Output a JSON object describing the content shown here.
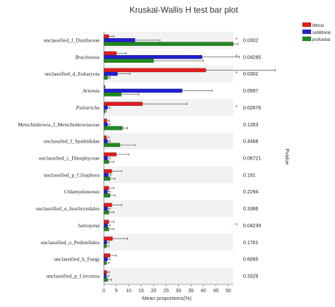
{
  "chart_data": {
    "type": "bar",
    "title": "Kruskal-Wallis H test bar plot",
    "xlabel": "Mean proportions(%)",
    "right_axis_label": "Pvalue",
    "xlim": [
      0,
      52
    ],
    "xticks": [
      0,
      5,
      10,
      15,
      20,
      25,
      30,
      35,
      40,
      45,
      50
    ],
    "legend_position": "top-right",
    "series": [
      {
        "name": "littoral",
        "color": "#e31a1c",
        "values": [
          2,
          5,
          41,
          0.3,
          15.5,
          1.2,
          1,
          5,
          3.2,
          2,
          3.2,
          2,
          3.5,
          2.5,
          1.2
        ],
        "errors": [
          2,
          4,
          28,
          0.2,
          18,
          1,
          1,
          5,
          4,
          2,
          4,
          2,
          6,
          2.5,
          1
        ]
      },
      {
        "name": "sublittoral",
        "color": "#1f1fd0",
        "values": [
          12.5,
          39.5,
          5.5,
          31.5,
          1.5,
          1.5,
          1.5,
          1.5,
          1.8,
          1.5,
          1.5,
          1.5,
          1.2,
          1.5,
          1
        ],
        "errors": [
          10,
          15,
          5,
          12,
          1,
          1,
          1,
          1,
          1,
          1,
          1,
          1,
          1,
          1,
          1
        ]
      },
      {
        "name": "profundal",
        "color": "#1e8a1e",
        "values": [
          52,
          20,
          1.5,
          7,
          0.5,
          7.5,
          6.5,
          2,
          2.5,
          2.5,
          2,
          2,
          1,
          1,
          1.5
        ],
        "errors": [
          2,
          20,
          1,
          7,
          0.5,
          2,
          6,
          2,
          2,
          2,
          2,
          2,
          1,
          1,
          1.5
        ]
      }
    ],
    "categories": [
      {
        "label": "unclassified_f_Dunllaceae",
        "italic": false,
        "pvalue": "0.0302",
        "sig": "*"
      },
      {
        "label": "Brachionus",
        "italic": true,
        "pvalue": "0.04285",
        "sig": "*"
      },
      {
        "label": "unclassified_d_Eukaryota",
        "italic": false,
        "pvalue": "0.0302",
        "sig": "*"
      },
      {
        "label": "Artemia",
        "italic": true,
        "pvalue": "0.0997",
        "sig": ""
      },
      {
        "label": "Psilotricha",
        "italic": true,
        "pvalue": "0.02676",
        "sig": "*"
      },
      {
        "label": "Metschnikowia_f_Metschnikowiaceae",
        "italic": false,
        "pvalue": "0.1353",
        "sig": ""
      },
      {
        "label": "unclassifed_f_Spathididae",
        "italic": false,
        "pvalue": "0.4468",
        "sig": ""
      },
      {
        "label": "unclassified_c_Dinophyceae",
        "italic": false,
        "pvalue": "0.06721",
        "sig": ""
      },
      {
        "label": "unclassified_p_Ciliophora",
        "italic": false,
        "pvalue": "0.191",
        "sig": ""
      },
      {
        "label": "Chlamydomonas",
        "italic": true,
        "pvalue": "0.2294",
        "sig": ""
      },
      {
        "label": "unclassified_o_Isochrysidales",
        "italic": false,
        "pvalue": "0.3366",
        "sig": ""
      },
      {
        "label": "Saitozyma",
        "italic": true,
        "pvalue": "0.04239",
        "sig": "*"
      },
      {
        "label": "unclassified_o_Pedinellales",
        "italic": false,
        "pvalue": "0.1761",
        "sig": ""
      },
      {
        "label": "unclassified_k_Fungi",
        "italic": false,
        "pvalue": "0.6065",
        "sig": ""
      },
      {
        "label": "unclassified_p_Cercozoa",
        "italic": false,
        "pvalue": "0.3329",
        "sig": ""
      }
    ]
  }
}
